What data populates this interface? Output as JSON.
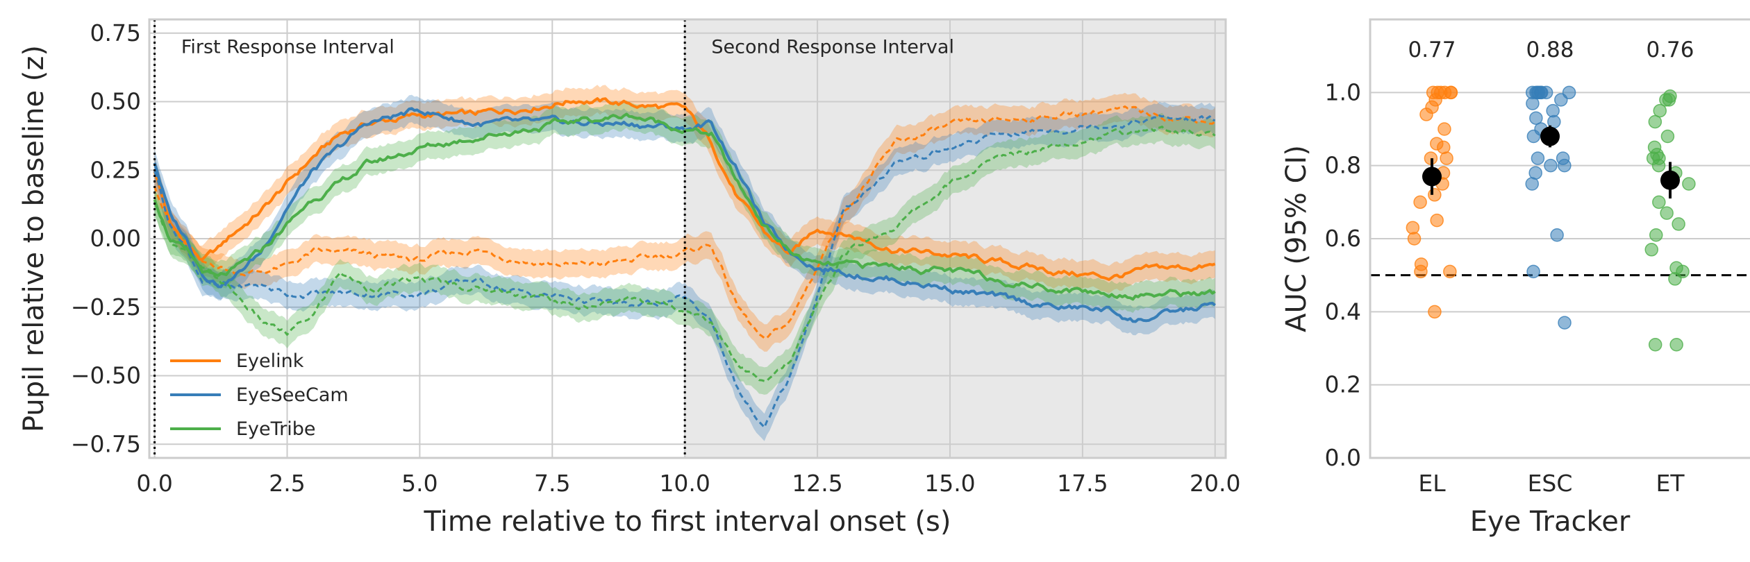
{
  "colors": {
    "eyelink": "#ff7f0e",
    "eyeseecam": "#377eb8",
    "eyetribe": "#4daf4a",
    "shade": "#e8e8e8",
    "marker": "#000000"
  },
  "chart_data": [
    {
      "type": "line",
      "xlabel": "Time relative to first interval onset (s)",
      "ylabel": "Pupil relative to baseline (z)",
      "xlim": [
        -0.1,
        20.2
      ],
      "ylim": [
        -0.8,
        0.8
      ],
      "xticks": [
        0,
        2.5,
        5,
        7.5,
        10,
        12.5,
        15,
        17.5,
        20
      ],
      "xtick_labels": [
        "0.0",
        "2.5",
        "5.0",
        "7.5",
        "10.0",
        "12.5",
        "15.0",
        "17.5",
        "20.0"
      ],
      "yticks": [
        0.75,
        0.5,
        0.25,
        0,
        -0.25,
        -0.5,
        -0.75
      ],
      "ytick_labels": [
        "0.75",
        "0.50",
        "0.25",
        "0.00",
        "−0.25",
        "−0.50",
        "−0.75"
      ],
      "grid": true,
      "legend": "lower-left",
      "shaded_region": [
        10,
        20.2
      ],
      "vlines": [
        0,
        10
      ],
      "annotations": [
        {
          "text": "First Response Interval",
          "x": 0.5,
          "y": 0.7
        },
        {
          "text": "Second Response Interval",
          "x": 10.5,
          "y": 0.7
        }
      ],
      "series": [
        {
          "name": "Eyelink",
          "style": "solid",
          "band": 0.05,
          "x": [
            0,
            0.3,
            0.6,
            0.9,
            1.2,
            1.5,
            2,
            2.5,
            3,
            3.5,
            4,
            5,
            6,
            7,
            8,
            8.5,
            9,
            10,
            10.5,
            11,
            11.5,
            12,
            12.5,
            13,
            14,
            15,
            16,
            17,
            18,
            19,
            20
          ],
          "y": [
            0.25,
            0.05,
            -0.02,
            -0.08,
            -0.04,
            0.02,
            0.1,
            0.2,
            0.3,
            0.38,
            0.42,
            0.45,
            0.45,
            0.48,
            0.51,
            0.5,
            0.49,
            0.47,
            0.35,
            0.15,
            0.02,
            -0.06,
            0.04,
            0.02,
            -0.04,
            -0.06,
            -0.09,
            -0.12,
            -0.14,
            -0.11,
            -0.1
          ]
        },
        {
          "name": "",
          "style": "dashed",
          "band": 0.05,
          "x": [
            0,
            0.3,
            0.6,
            0.9,
            1.2,
            1.5,
            2,
            2.5,
            3,
            4,
            5,
            6,
            7,
            8,
            9,
            10,
            10.5,
            11,
            11.5,
            12,
            12.5,
            13,
            14,
            15,
            16,
            17,
            18,
            19,
            20
          ],
          "y": [
            0.2,
            0.05,
            -0.02,
            -0.1,
            -0.1,
            -0.12,
            -0.12,
            -0.1,
            -0.05,
            -0.06,
            -0.08,
            -0.04,
            -0.08,
            -0.1,
            -0.08,
            -0.05,
            -0.02,
            -0.25,
            -0.38,
            -0.3,
            -0.1,
            0.1,
            0.35,
            0.41,
            0.43,
            0.45,
            0.47,
            0.45,
            0.43
          ]
        },
        {
          "name": "EyeSeeCam",
          "style": "solid",
          "band": 0.05,
          "x": [
            0,
            0.3,
            0.6,
            0.9,
            1.2,
            1.5,
            2,
            2.5,
            3,
            3.5,
            4,
            5,
            6,
            7,
            8,
            9,
            10,
            10.5,
            11,
            11.5,
            12,
            12.5,
            13,
            14,
            15,
            16,
            17,
            18,
            18.5,
            19,
            20
          ],
          "y": [
            0.28,
            0.08,
            0.0,
            -0.12,
            -0.16,
            -0.14,
            -0.05,
            0.12,
            0.25,
            0.33,
            0.42,
            0.47,
            0.42,
            0.42,
            0.42,
            0.42,
            0.4,
            0.42,
            0.25,
            0.05,
            -0.05,
            -0.1,
            -0.12,
            -0.15,
            -0.18,
            -0.22,
            -0.25,
            -0.26,
            -0.3,
            -0.28,
            -0.24
          ]
        },
        {
          "name": "",
          "style": "dashed",
          "band": 0.05,
          "x": [
            0,
            0.3,
            0.6,
            0.9,
            1.2,
            1.5,
            2,
            2.5,
            3,
            4,
            5,
            6,
            7,
            8,
            9,
            10,
            10.5,
            11,
            11.5,
            12,
            12.5,
            13,
            14,
            15,
            16,
            17,
            18,
            19,
            20
          ],
          "y": [
            0.25,
            0.05,
            -0.03,
            -0.15,
            -0.18,
            -0.18,
            -0.17,
            -0.2,
            -0.2,
            -0.2,
            -0.2,
            -0.15,
            -0.2,
            -0.22,
            -0.25,
            -0.22,
            -0.3,
            -0.55,
            -0.7,
            -0.5,
            -0.2,
            0.1,
            0.28,
            0.33,
            0.38,
            0.4,
            0.42,
            0.44,
            0.43
          ]
        },
        {
          "name": "EyeTribe",
          "style": "solid",
          "band": 0.05,
          "x": [
            0,
            0.3,
            0.6,
            0.9,
            1.2,
            1.5,
            2,
            2.5,
            3,
            3.5,
            4,
            5,
            6,
            7,
            8,
            9,
            10,
            10.5,
            11,
            11.5,
            12,
            12.5,
            13,
            14,
            15,
            16,
            17,
            18,
            19,
            20
          ],
          "y": [
            0.15,
            0.0,
            -0.05,
            -0.12,
            -0.15,
            -0.12,
            -0.05,
            0.05,
            0.15,
            0.2,
            0.27,
            0.33,
            0.37,
            0.4,
            0.43,
            0.45,
            0.4,
            0.38,
            0.2,
            0.05,
            -0.05,
            -0.1,
            -0.1,
            -0.1,
            -0.12,
            -0.15,
            -0.18,
            -0.2,
            -0.2,
            -0.2
          ]
        },
        {
          "name": "",
          "style": "dashed",
          "band": 0.05,
          "x": [
            0,
            0.3,
            0.6,
            0.9,
            1.2,
            1.5,
            2,
            2.5,
            3,
            3.5,
            4,
            5,
            6,
            7,
            8,
            9,
            10,
            10.5,
            11,
            11.5,
            12,
            12.5,
            13,
            14,
            15,
            16,
            17,
            18,
            19,
            20
          ],
          "y": [
            0.12,
            0.0,
            -0.05,
            -0.12,
            -0.15,
            -0.2,
            -0.3,
            -0.35,
            -0.28,
            -0.12,
            -0.18,
            -0.15,
            -0.18,
            -0.2,
            -0.25,
            -0.22,
            -0.25,
            -0.3,
            -0.45,
            -0.53,
            -0.45,
            -0.25,
            -0.05,
            0.05,
            0.2,
            0.3,
            0.35,
            0.38,
            0.4,
            0.38
          ]
        }
      ]
    },
    {
      "type": "scatter",
      "xlabel": "Eye Tracker",
      "ylabel": "AUC (95% CI)",
      "categories": [
        "EL",
        "ESC",
        "ET"
      ],
      "ylim": [
        0,
        1.2
      ],
      "yticks": [
        0,
        0.2,
        0.4,
        0.6,
        0.8,
        1.0
      ],
      "ytick_labels": [
        "0.0",
        "0.2",
        "0.4",
        "0.6",
        "0.8",
        "1.0"
      ],
      "grid": true,
      "chance_line": 0.5,
      "auc_labels": [
        "0.77",
        "0.88",
        "0.76"
      ],
      "means": [
        0.77,
        0.88,
        0.76
      ],
      "ci": [
        [
          0.72,
          0.82
        ],
        [
          0.85,
          0.91
        ],
        [
          0.71,
          0.81
        ]
      ],
      "points": [
        [
          1.0,
          1.0,
          1.0,
          1.0,
          1.0,
          1.0,
          0.98,
          0.96,
          0.94,
          0.9,
          0.86,
          0.85,
          0.82,
          0.82,
          0.78,
          0.75,
          0.72,
          0.7,
          0.65,
          0.63,
          0.6,
          0.53,
          0.51,
          0.51,
          0.4
        ],
        [
          1.0,
          1.0,
          1.0,
          1.0,
          1.0,
          1.0,
          1.0,
          1.0,
          0.98,
          0.97,
          0.95,
          0.93,
          0.92,
          0.9,
          0.88,
          0.82,
          0.82,
          0.8,
          0.8,
          0.78,
          0.75,
          0.61,
          0.51,
          0.37
        ],
        [
          0.99,
          0.98,
          0.98,
          0.95,
          0.92,
          0.88,
          0.85,
          0.83,
          0.82,
          0.82,
          0.8,
          0.78,
          0.75,
          0.7,
          0.67,
          0.64,
          0.61,
          0.57,
          0.52,
          0.51,
          0.49,
          0.31,
          0.31
        ]
      ]
    }
  ]
}
